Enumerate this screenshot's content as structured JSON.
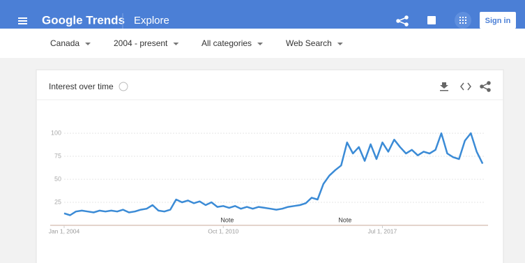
{
  "header": {
    "brand": "Google Trends",
    "section": "Explore",
    "sign_in": "Sign in"
  },
  "filters": [
    "Canada",
    "2004 - present",
    "All categories",
    "Web Search"
  ],
  "card_title": "Interest over time",
  "chart_data": {
    "type": "line",
    "x": [
      "2004-01",
      "2004-04",
      "2004-07",
      "2004-10",
      "2005-01",
      "2005-04",
      "2005-07",
      "2005-10",
      "2006-01",
      "2006-04",
      "2006-07",
      "2006-10",
      "2007-01",
      "2007-04",
      "2007-07",
      "2007-10",
      "2008-01",
      "2008-04",
      "2008-07",
      "2008-10",
      "2009-01",
      "2009-04",
      "2009-07",
      "2009-10",
      "2010-01",
      "2010-04",
      "2010-07",
      "2010-10",
      "2011-01",
      "2011-04",
      "2011-07",
      "2011-10",
      "2012-01",
      "2012-04",
      "2012-07",
      "2012-10",
      "2013-01",
      "2013-04",
      "2013-07",
      "2013-10",
      "2014-01",
      "2014-04",
      "2014-07",
      "2014-10",
      "2015-01",
      "2015-04",
      "2015-07",
      "2015-10",
      "2016-01",
      "2016-04",
      "2016-07",
      "2016-10",
      "2017-01",
      "2017-04",
      "2017-07",
      "2017-10",
      "2018-01",
      "2018-04",
      "2018-07",
      "2018-10",
      "2019-01",
      "2019-04",
      "2019-07",
      "2019-10",
      "2020-01",
      "2020-04",
      "2020-07",
      "2020-10",
      "2021-01",
      "2021-04",
      "2021-07",
      "2021-10"
    ],
    "series": [
      {
        "name": "Interest",
        "color": "#3b8bd6",
        "values": [
          13,
          11,
          15,
          16,
          15,
          14,
          16,
          15,
          16,
          15,
          17,
          14,
          15,
          17,
          18,
          22,
          16,
          15,
          17,
          28,
          25,
          27,
          24,
          26,
          22,
          25,
          20,
          21,
          19,
          21,
          18,
          20,
          18,
          20,
          19,
          18,
          17,
          18,
          20,
          21,
          22,
          24,
          30,
          28,
          45,
          54,
          60,
          65,
          90,
          78,
          85,
          70,
          88,
          72,
          90,
          80,
          93,
          85,
          78,
          82,
          76,
          80,
          78,
          82,
          100,
          78,
          74,
          72,
          92,
          100,
          80,
          67
        ]
      }
    ],
    "ylim": [
      0,
      100
    ],
    "yticks": [
      25,
      50,
      75,
      100
    ],
    "xlim": [
      "2004-01",
      "2021-11"
    ],
    "xticks": [
      {
        "value": "2004-01",
        "label": "Jan 1, 2004"
      },
      {
        "value": "2010-10",
        "label": "Oct 1, 2010"
      },
      {
        "value": "2017-07",
        "label": "Jul 1, 2017"
      }
    ],
    "annotations": [
      {
        "x": "2010-12",
        "text": "Note"
      },
      {
        "x": "2015-12",
        "text": "Note"
      }
    ],
    "grid": true
  }
}
